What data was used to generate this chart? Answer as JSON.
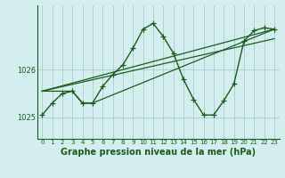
{
  "background_color": "#d4eef0",
  "grid_color": "#aacccc",
  "line_color": "#1a5c1a",
  "xlabel": "Graphe pression niveau de la mer (hPa)",
  "xlabel_fontsize": 7,
  "ylabel_values": [
    1025,
    1026
  ],
  "xlim": [
    -0.5,
    23.5
  ],
  "ylim": [
    1024.55,
    1027.35
  ],
  "series_main": {
    "x": [
      0,
      1,
      2,
      3,
      4,
      5,
      6,
      7,
      8,
      9,
      10,
      11,
      12,
      13,
      14,
      15,
      16,
      17,
      18,
      19,
      20,
      21,
      22,
      23
    ],
    "y": [
      1025.05,
      1025.3,
      1025.5,
      1025.55,
      1025.3,
      1025.3,
      1025.65,
      1025.9,
      1026.1,
      1026.45,
      1026.85,
      1026.97,
      1026.7,
      1026.35,
      1025.8,
      1025.38,
      1025.05,
      1025.05,
      1025.35,
      1025.7,
      1026.6,
      1026.82,
      1026.88,
      1026.85
    ]
  },
  "series_extra": [
    {
      "x": [
        0,
        3,
        4,
        4,
        5,
        23
      ],
      "y": [
        1025.55,
        1025.55,
        1025.3,
        1025.3,
        1025.3,
        1026.85
      ]
    },
    {
      "x": [
        0,
        23
      ],
      "y": [
        1025.55,
        1026.85
      ]
    },
    {
      "x": [
        0,
        23
      ],
      "y": [
        1025.55,
        1026.65
      ]
    }
  ]
}
